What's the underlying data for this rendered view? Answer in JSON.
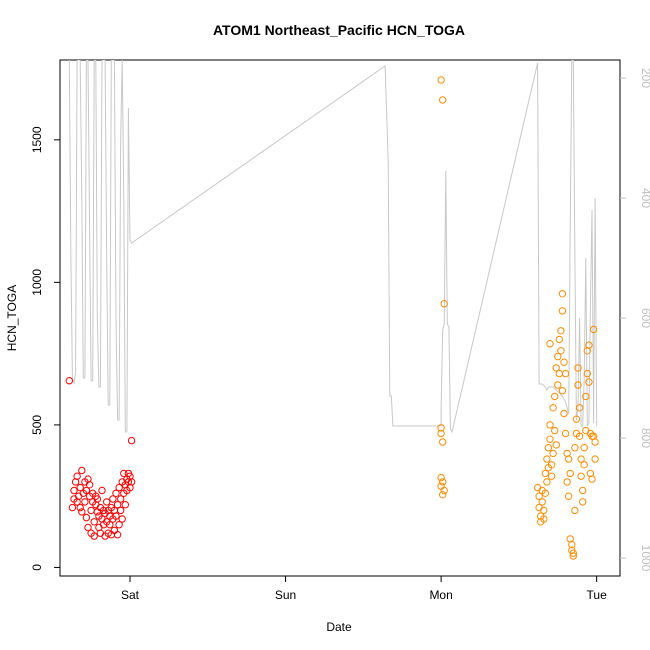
{
  "chart_data": {
    "type": "scatter",
    "title": "ATOM1 Northeast_Pacific HCN_TOGA",
    "xlabel": "Date",
    "ylabel": "HCN_TOGA",
    "x_ticks": [
      {
        "label": "Sat",
        "value": 1.0
      },
      {
        "label": "Sun",
        "value": 2.0
      },
      {
        "label": "Mon",
        "value": 3.0
      },
      {
        "label": "Tue",
        "value": 4.0
      }
    ],
    "xlim": [
      0.55,
      4.15
    ],
    "ylim": [
      -30,
      1780
    ],
    "y_ticks": [
      0,
      500,
      1000,
      1500
    ],
    "y2_ticks": [
      200,
      400,
      600,
      800,
      1000
    ],
    "y2lim": [
      1030,
      170
    ],
    "grid": false,
    "series": [
      {
        "color": "#ff0000",
        "points": [
          [
            0.61,
            655
          ],
          [
            0.63,
            210
          ],
          [
            0.64,
            240
          ],
          [
            0.64,
            270
          ],
          [
            0.65,
            300
          ],
          [
            0.66,
            230
          ],
          [
            0.66,
            320
          ],
          [
            0.67,
            250
          ],
          [
            0.68,
            210
          ],
          [
            0.68,
            280
          ],
          [
            0.69,
            340
          ],
          [
            0.69,
            195
          ],
          [
            0.7,
            260
          ],
          [
            0.71,
            300
          ],
          [
            0.71,
            230
          ],
          [
            0.72,
            175
          ],
          [
            0.72,
            270
          ],
          [
            0.73,
            310
          ],
          [
            0.73,
            140
          ],
          [
            0.74,
            250
          ],
          [
            0.74,
            290
          ],
          [
            0.75,
            120
          ],
          [
            0.75,
            200
          ],
          [
            0.76,
            230
          ],
          [
            0.76,
            260
          ],
          [
            0.77,
            110
          ],
          [
            0.77,
            160
          ],
          [
            0.78,
            250
          ],
          [
            0.78,
            220
          ],
          [
            0.79,
            195
          ],
          [
            0.79,
            240
          ],
          [
            0.8,
            140
          ],
          [
            0.8,
            180
          ],
          [
            0.81,
            210
          ],
          [
            0.81,
            120
          ],
          [
            0.82,
            170
          ],
          [
            0.82,
            270
          ],
          [
            0.83,
            200
          ],
          [
            0.83,
            150
          ],
          [
            0.84,
            110
          ],
          [
            0.84,
            190
          ],
          [
            0.85,
            230
          ],
          [
            0.85,
            160
          ],
          [
            0.86,
            120
          ],
          [
            0.86,
            200
          ],
          [
            0.87,
            180
          ],
          [
            0.87,
            150
          ],
          [
            0.88,
            115
          ],
          [
            0.88,
            210
          ],
          [
            0.89,
            170
          ],
          [
            0.89,
            240
          ],
          [
            0.9,
            130
          ],
          [
            0.9,
            200
          ],
          [
            0.91,
            180
          ],
          [
            0.91,
            260
          ],
          [
            0.92,
            115
          ],
          [
            0.92,
            220
          ],
          [
            0.93,
            150
          ],
          [
            0.93,
            280
          ],
          [
            0.94,
            240
          ],
          [
            0.94,
            200
          ],
          [
            0.95,
            300
          ],
          [
            0.95,
            170
          ],
          [
            0.96,
            330
          ],
          [
            0.96,
            260
          ],
          [
            0.97,
            290
          ],
          [
            0.97,
            220
          ],
          [
            0.98,
            310
          ],
          [
            0.98,
            270
          ],
          [
            0.99,
            300
          ],
          [
            0.99,
            330
          ],
          [
            1.0,
            280
          ],
          [
            1.0,
            320
          ],
          [
            1.01,
            300
          ],
          [
            1.01,
            445
          ]
        ]
      },
      {
        "color": "#ff8c00",
        "points": [
          [
            3.0,
            1710
          ],
          [
            3.01,
            1640
          ],
          [
            3.02,
            925
          ],
          [
            3.0,
            490
          ],
          [
            3.0,
            470
          ],
          [
            3.01,
            440
          ],
          [
            3.0,
            315
          ],
          [
            3.01,
            300
          ],
          [
            3.0,
            285
          ],
          [
            3.02,
            270
          ],
          [
            3.01,
            255
          ],
          [
            3.62,
            280
          ],
          [
            3.63,
            250
          ],
          [
            3.63,
            210
          ],
          [
            3.64,
            180
          ],
          [
            3.64,
            160
          ],
          [
            3.65,
            270
          ],
          [
            3.65,
            230
          ],
          [
            3.66,
            200
          ],
          [
            3.66,
            170
          ],
          [
            3.67,
            260
          ],
          [
            3.67,
            330
          ],
          [
            3.68,
            380
          ],
          [
            3.68,
            300
          ],
          [
            3.69,
            350
          ],
          [
            3.69,
            420
          ],
          [
            3.7,
            450
          ],
          [
            3.7,
            500
          ],
          [
            3.7,
            785
          ],
          [
            3.71,
            360
          ],
          [
            3.71,
            320
          ],
          [
            3.72,
            400
          ],
          [
            3.72,
            560
          ],
          [
            3.73,
            600
          ],
          [
            3.73,
            480
          ],
          [
            3.74,
            430
          ],
          [
            3.74,
            700
          ],
          [
            3.75,
            640
          ],
          [
            3.75,
            740
          ],
          [
            3.76,
            800
          ],
          [
            3.76,
            680
          ],
          [
            3.77,
            760
          ],
          [
            3.77,
            830
          ],
          [
            3.78,
            900
          ],
          [
            3.78,
            960
          ],
          [
            3.78,
            620
          ],
          [
            3.79,
            540
          ],
          [
            3.79,
            720
          ],
          [
            3.8,
            680
          ],
          [
            3.8,
            470
          ],
          [
            3.81,
            400
          ],
          [
            3.81,
            300
          ],
          [
            3.82,
            250
          ],
          [
            3.82,
            380
          ],
          [
            3.83,
            330
          ],
          [
            3.83,
            100
          ],
          [
            3.84,
            80
          ],
          [
            3.84,
            60
          ],
          [
            3.85,
            50
          ],
          [
            3.85,
            40
          ],
          [
            3.86,
            200
          ],
          [
            3.86,
            420
          ],
          [
            3.87,
            470
          ],
          [
            3.87,
            520
          ],
          [
            3.88,
            640
          ],
          [
            3.88,
            700
          ],
          [
            3.89,
            560
          ],
          [
            3.89,
            460
          ],
          [
            3.9,
            380
          ],
          [
            3.9,
            320
          ],
          [
            3.91,
            270
          ],
          [
            3.91,
            230
          ],
          [
            3.92,
            360
          ],
          [
            3.92,
            420
          ],
          [
            3.93,
            480
          ],
          [
            3.93,
            600
          ],
          [
            3.94,
            680
          ],
          [
            3.94,
            760
          ],
          [
            3.95,
            780
          ],
          [
            3.95,
            650
          ],
          [
            3.96,
            470
          ],
          [
            3.96,
            330
          ],
          [
            3.97,
            460
          ],
          [
            3.97,
            310
          ],
          [
            3.98,
            835
          ],
          [
            3.98,
            460
          ],
          [
            3.99,
            440
          ],
          [
            3.99,
            380
          ]
        ]
      }
    ],
    "line2": {
      "color": "#c8c8c8",
      "points": [
        [
          0.61,
          170
        ],
        [
          0.62,
          500
        ],
        [
          0.63,
          700
        ],
        [
          0.64,
          710
        ],
        [
          0.65,
          690
        ],
        [
          0.66,
          170
        ],
        [
          0.67,
          170
        ],
        [
          0.68,
          170
        ],
        [
          0.69,
          400
        ],
        [
          0.7,
          700
        ],
        [
          0.71,
          700
        ],
        [
          0.72,
          170
        ],
        [
          0.73,
          170
        ],
        [
          0.74,
          450
        ],
        [
          0.75,
          705
        ],
        [
          0.76,
          705
        ],
        [
          0.77,
          170
        ],
        [
          0.78,
          170
        ],
        [
          0.79,
          600
        ],
        [
          0.8,
          715
        ],
        [
          0.81,
          715
        ],
        [
          0.82,
          170
        ],
        [
          0.83,
          170
        ],
        [
          0.84,
          170
        ],
        [
          0.85,
          500
        ],
        [
          0.86,
          745
        ],
        [
          0.87,
          745
        ],
        [
          0.88,
          170
        ],
        [
          0.89,
          170
        ],
        [
          0.9,
          170
        ],
        [
          0.91,
          600
        ],
        [
          0.92,
          770
        ],
        [
          0.93,
          770
        ],
        [
          0.94,
          300
        ],
        [
          0.95,
          170
        ],
        [
          0.96,
          400
        ],
        [
          0.97,
          790
        ],
        [
          0.98,
          790
        ],
        [
          0.99,
          250
        ],
        [
          1.0,
          470
        ],
        [
          1.01,
          475
        ],
        [
          2.64,
          180
        ],
        [
          2.66,
          340
        ],
        [
          2.67,
          730
        ],
        [
          2.68,
          730
        ],
        [
          2.69,
          780
        ],
        [
          2.7,
          780
        ],
        [
          2.72,
          780
        ],
        [
          3.0,
          780
        ],
        [
          3.0,
          750
        ],
        [
          3.01,
          620
        ],
        [
          3.02,
          610
        ],
        [
          3.03,
          355
        ],
        [
          3.04,
          610
        ],
        [
          3.05,
          615
        ],
        [
          3.06,
          785
        ],
        [
          3.07,
          790
        ],
        [
          3.62,
          175
        ],
        [
          3.63,
          710
        ],
        [
          3.65,
          710
        ],
        [
          3.67,
          715
        ],
        [
          3.68,
          720
        ],
        [
          3.69,
          715
        ],
        [
          3.7,
          715
        ],
        [
          3.72,
          715
        ],
        [
          3.74,
          720
        ],
        [
          3.76,
          725
        ],
        [
          3.78,
          730
        ],
        [
          3.8,
          740
        ],
        [
          3.82,
          760
        ],
        [
          3.83,
          450
        ],
        [
          3.84,
          170
        ],
        [
          3.85,
          170
        ],
        [
          3.86,
          500
        ],
        [
          3.87,
          770
        ],
        [
          3.88,
          750
        ],
        [
          3.89,
          600
        ],
        [
          3.9,
          780
        ],
        [
          3.91,
          780
        ],
        [
          3.92,
          700
        ],
        [
          3.93,
          500
        ],
        [
          3.94,
          780
        ],
        [
          3.95,
          775
        ],
        [
          3.96,
          580
        ],
        [
          3.97,
          420
        ],
        [
          3.98,
          775
        ],
        [
          3.99,
          400
        ],
        [
          4.0,
          780
        ]
      ]
    }
  }
}
